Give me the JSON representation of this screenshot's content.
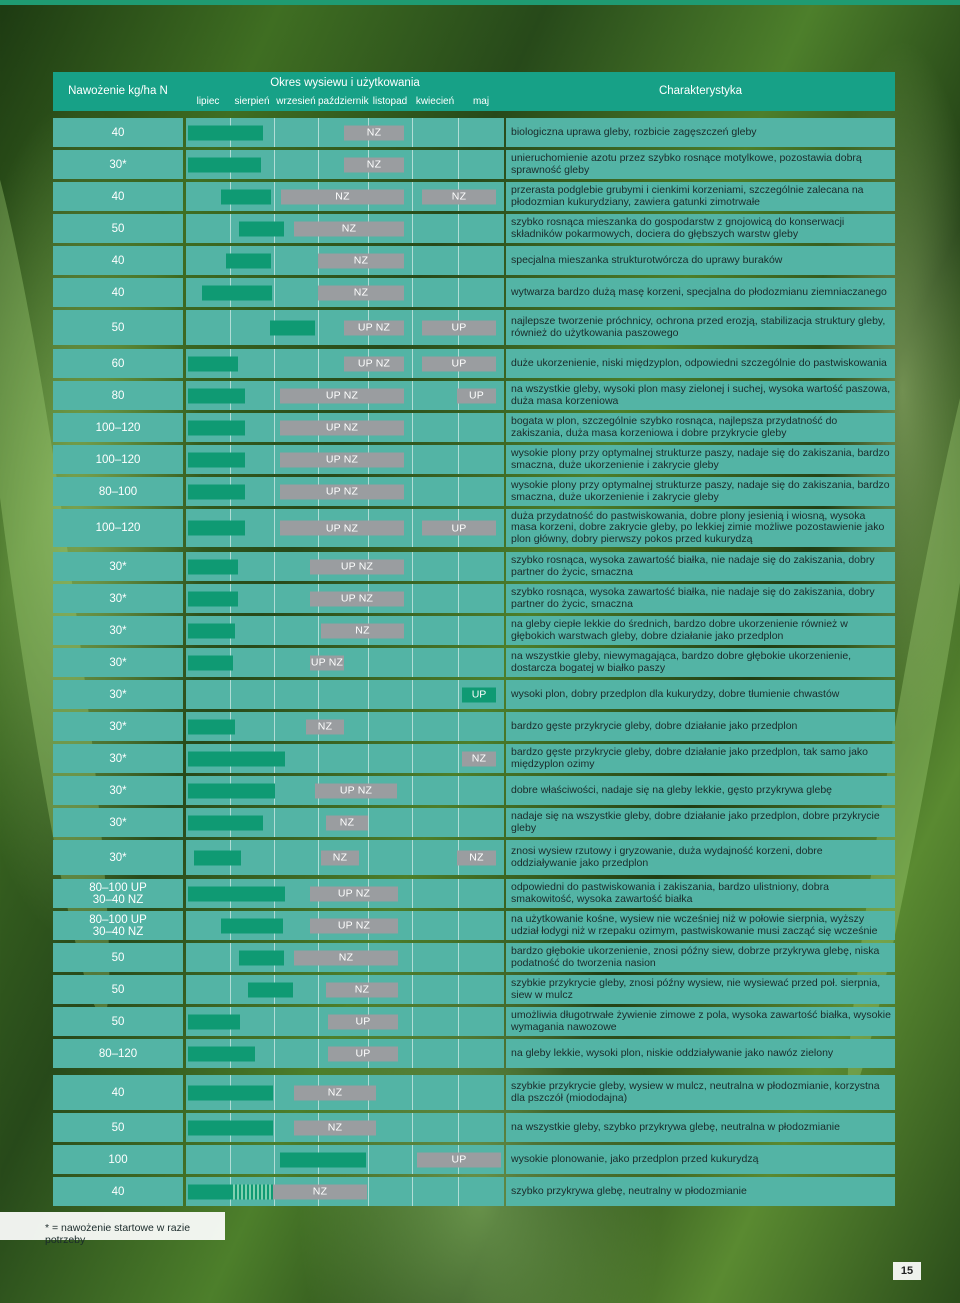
{
  "header": {
    "nitrogen": "Nawożenie kg/ha N",
    "period": "Okres wysiewu i użytkowania",
    "characteristics": "Charakterystyka",
    "months": [
      "lipiec",
      "sierpień",
      "wrzesień",
      "październik",
      "listopad",
      "kwiecień",
      "maj"
    ]
  },
  "rows": [
    {
      "n": "40",
      "desc": "biologiczna uprawa gleby, rozbicie zagęszczeń gleby"
    },
    {
      "n": "30*",
      "desc": "unieruchomienie azotu przez szybko rosnące motylkowe, pozostawia dobrą sprawność gleby"
    },
    {
      "n": "40",
      "desc": "przerasta podglebie grubymi i cienkimi korzeniami, szczególnie zalecana na płodozmian kukurydziany, zawiera gatunki zimotrwałe"
    },
    {
      "n": "50",
      "desc": "szybko rosnąca mieszanka do gospodarstw z gnojowicą do konserwacji składników pokarmowych, dociera do głębszych warstw gleby"
    },
    {
      "n": "40",
      "desc": "specjalna mieszanka strukturotwórcza do uprawy buraków"
    },
    {
      "n": "40",
      "desc": "wytwarza bardzo dużą masę korzeni, specjalna do płodozmianu ziemniaczanego"
    },
    {
      "n": "50",
      "desc": "najlepsze tworzenie próchnicy, ochrona przed erozją, stabilizacja struktury gleby, również do użytkowania paszowego"
    },
    {
      "n": "60",
      "desc": "duże ukorzenienie, niski międzyplon, odpowiedni szczególnie do pastwiskowania"
    },
    {
      "n": "80",
      "desc": "na wszystkie gleby, wysoki plon masy zielonej i suchej, wysoka wartość paszowa, duża masa korzeniowa"
    },
    {
      "n": "100–120",
      "desc": "bogata w plon, szczególnie szybko rosnąca, najlepsza przydatność do zakiszania, duża masa korzeniowa i dobre przykrycie gleby"
    },
    {
      "n": "100–120",
      "desc": "wysokie plony przy optymalnej strukturze paszy, nadaje się do zakiszania, bardzo smaczna, duże ukorzenienie i zakrycie gleby"
    },
    {
      "n": "80–100",
      "desc": "wysokie plony przy optymalnej strukturze paszy, nadaje się do zakiszania, bardzo smaczna, duże ukorzenienie i zakrycie gleby"
    },
    {
      "n": "100–120",
      "desc": "duża przydatność do pastwiskowania, dobre plony jesienią i wiosną, wysoka masa korzeni, dobre zakrycie gleby, po lekkiej zimie możliwe pozostawienie jako plon główny, dobry pierwszy pokos przed kukurydzą"
    },
    {
      "n": "30*",
      "desc": "szybko rosnąca, wysoka zawartość białka, nie nadaje się do zakiszania, dobry partner do życic, smaczna"
    },
    {
      "n": "30*",
      "desc": "szybko rosnąca, wysoka zawartość białka, nie nadaje się do zakiszania, dobry partner do życic, smaczna"
    },
    {
      "n": "30*",
      "desc": "na gleby ciepłe lekkie do średnich, bardzo dobre ukorzenienie również w głębokich warstwach gleby, dobre działanie jako przedplon"
    },
    {
      "n": "30*",
      "desc": "na wszystkie gleby, niewymagająca, bardzo dobre głębokie ukorzenienie, dostarcza bogatej w białko paszy"
    },
    {
      "n": "30*",
      "desc": "wysoki plon, dobry przedplon dla kukurydzy, dobre tłumienie chwastów"
    },
    {
      "n": "30*",
      "desc": "bardzo gęste przykrycie gleby, dobre działanie jako przedplon"
    },
    {
      "n": "30*",
      "desc": "bardzo gęste przykrycie gleby, dobre działanie jako przedplon, tak samo jako międzyplon ozimy"
    },
    {
      "n": "30*",
      "desc": "dobre właściwości, nadaje się na gleby lekkie, gęsto przykrywa glebę"
    },
    {
      "n": "30*",
      "desc": "nadaje się na wszystkie gleby, dobre działanie jako przedplon, dobre przykrycie gleby"
    },
    {
      "n": "30*",
      "desc": "znosi wysiew rzutowy i gryzowanie, duża wydajność korzeni, dobre oddziaływanie jako przedplon"
    },
    {
      "n": "80–100 UP\n30–40 NZ",
      "desc": "odpowiedni do pastwiskowania i zakiszania, bardzo ulistniony, dobra smakowitość, wysoka zawartość białka"
    },
    {
      "n": "80–100 UP\n30–40 NZ",
      "desc": "na użytkowanie kośne, wysiew nie wcześniej niż w połowie sierpnia, wyższy udział łodygi niż w rzepaku ozimym, pastwiskowanie musi zacząć się wcześnie"
    },
    {
      "n": "50",
      "desc": "bardzo głębokie ukorzenienie, znosi późny siew, dobrze przykrywa glebę, niska podatność do tworzenia nasion"
    },
    {
      "n": "50",
      "desc": "szybkie przykrycie gleby, znosi późny wysiew, nie wysiewać przed poł. sierpnia, siew w mulcz"
    },
    {
      "n": "50",
      "desc": "umożliwia długotrwałe żywienie zimowe z pola, wysoka zawartość białka, wysokie wymagania nawozowe"
    },
    {
      "n": "80–120",
      "desc": "na gleby lekkie, wysoki plon, niskie oddziaływanie jako nawóz zielony"
    },
    {
      "n": "40",
      "desc": "szybkie przykrycie gleby, wysiew w mulcz, neutralna w płodozmianie, korzystna dla pszczół (miododajna)"
    },
    {
      "n": "50",
      "desc": "na wszystkie gleby, szybko przykrywa glebę, neutralna w płodozmianie"
    },
    {
      "n": "100",
      "desc": "wysokie plonowanie, jako przedplon przed kukurydzą"
    },
    {
      "n": "40",
      "desc": "szybko przykrywa glebę, neutralny w płodozmianie"
    }
  ],
  "footnote": "* = nawożenie startowe w razie potrzeby",
  "page_number": "15"
}
